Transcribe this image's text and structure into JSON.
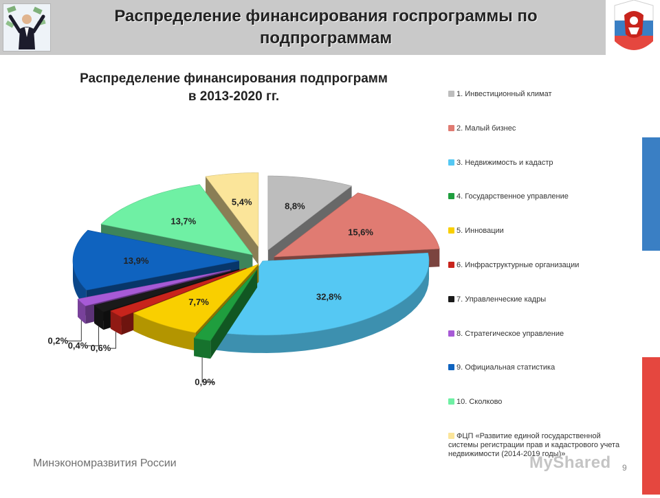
{
  "header": {
    "title_line1": "Распределение финансирования госпрограммы по",
    "title_line2": "подпрограммам"
  },
  "footer": {
    "ministry": "Минэкономразвития России",
    "watermark": "MyShared",
    "page_number": "9"
  },
  "colors": {
    "header_bg": "#c9c9c9",
    "flag_white": "#ffffff",
    "flag_blue": "#3a7fc4",
    "flag_red": "#e5473f"
  },
  "chart_data": {
    "type": "pie",
    "title_line1": "Распределение финансирования подпрограмм",
    "title_line2": "в 2013-2020 гг.",
    "legend_position": "right",
    "unit": "%",
    "slices": [
      {
        "legend": "1. Инвестиционный климат",
        "value": 8.8,
        "label": "8,8%",
        "color": "#bdbdbd"
      },
      {
        "legend": "2. Малый бизнес",
        "value": 15.6,
        "label": "15,6%",
        "color": "#e07b72"
      },
      {
        "legend": "3. Недвижимость и кадастр",
        "value": 32.8,
        "label": "32,8%",
        "color": "#55c8f3"
      },
      {
        "legend": "4. Государственное управление",
        "value": 0.9,
        "label": "0,9%",
        "color": "#1f9e3e"
      },
      {
        "legend": "5. Инновации",
        "value": 7.7,
        "label": "7,7%",
        "color": "#f9cf00"
      },
      {
        "legend": "6. Инфраструктурные организации",
        "value": 0.6,
        "label": "0,6%",
        "color": "#c8241c"
      },
      {
        "legend": "7. Управленческие кадры",
        "value": 0.4,
        "label": "0,4%",
        "color": "#1a1a1a"
      },
      {
        "legend": "8. Стратегическое управление",
        "value": 0.2,
        "label": "0,2%",
        "color": "#a75ad6"
      },
      {
        "legend": "9. Официальная статистика",
        "value": 13.9,
        "label": "13,9%",
        "color": "#0f63bf"
      },
      {
        "legend": "10. Сколково",
        "value": 13.7,
        "label": "13,7%",
        "color": "#6ff0a4"
      },
      {
        "legend": "ФЦП «Развитие единой государственной системы регистрации прав и кадастрового учета недвижимости (2014-2019 годы)»",
        "value": 5.4,
        "label": "5,4%",
        "color": "#fbe59a"
      }
    ]
  }
}
